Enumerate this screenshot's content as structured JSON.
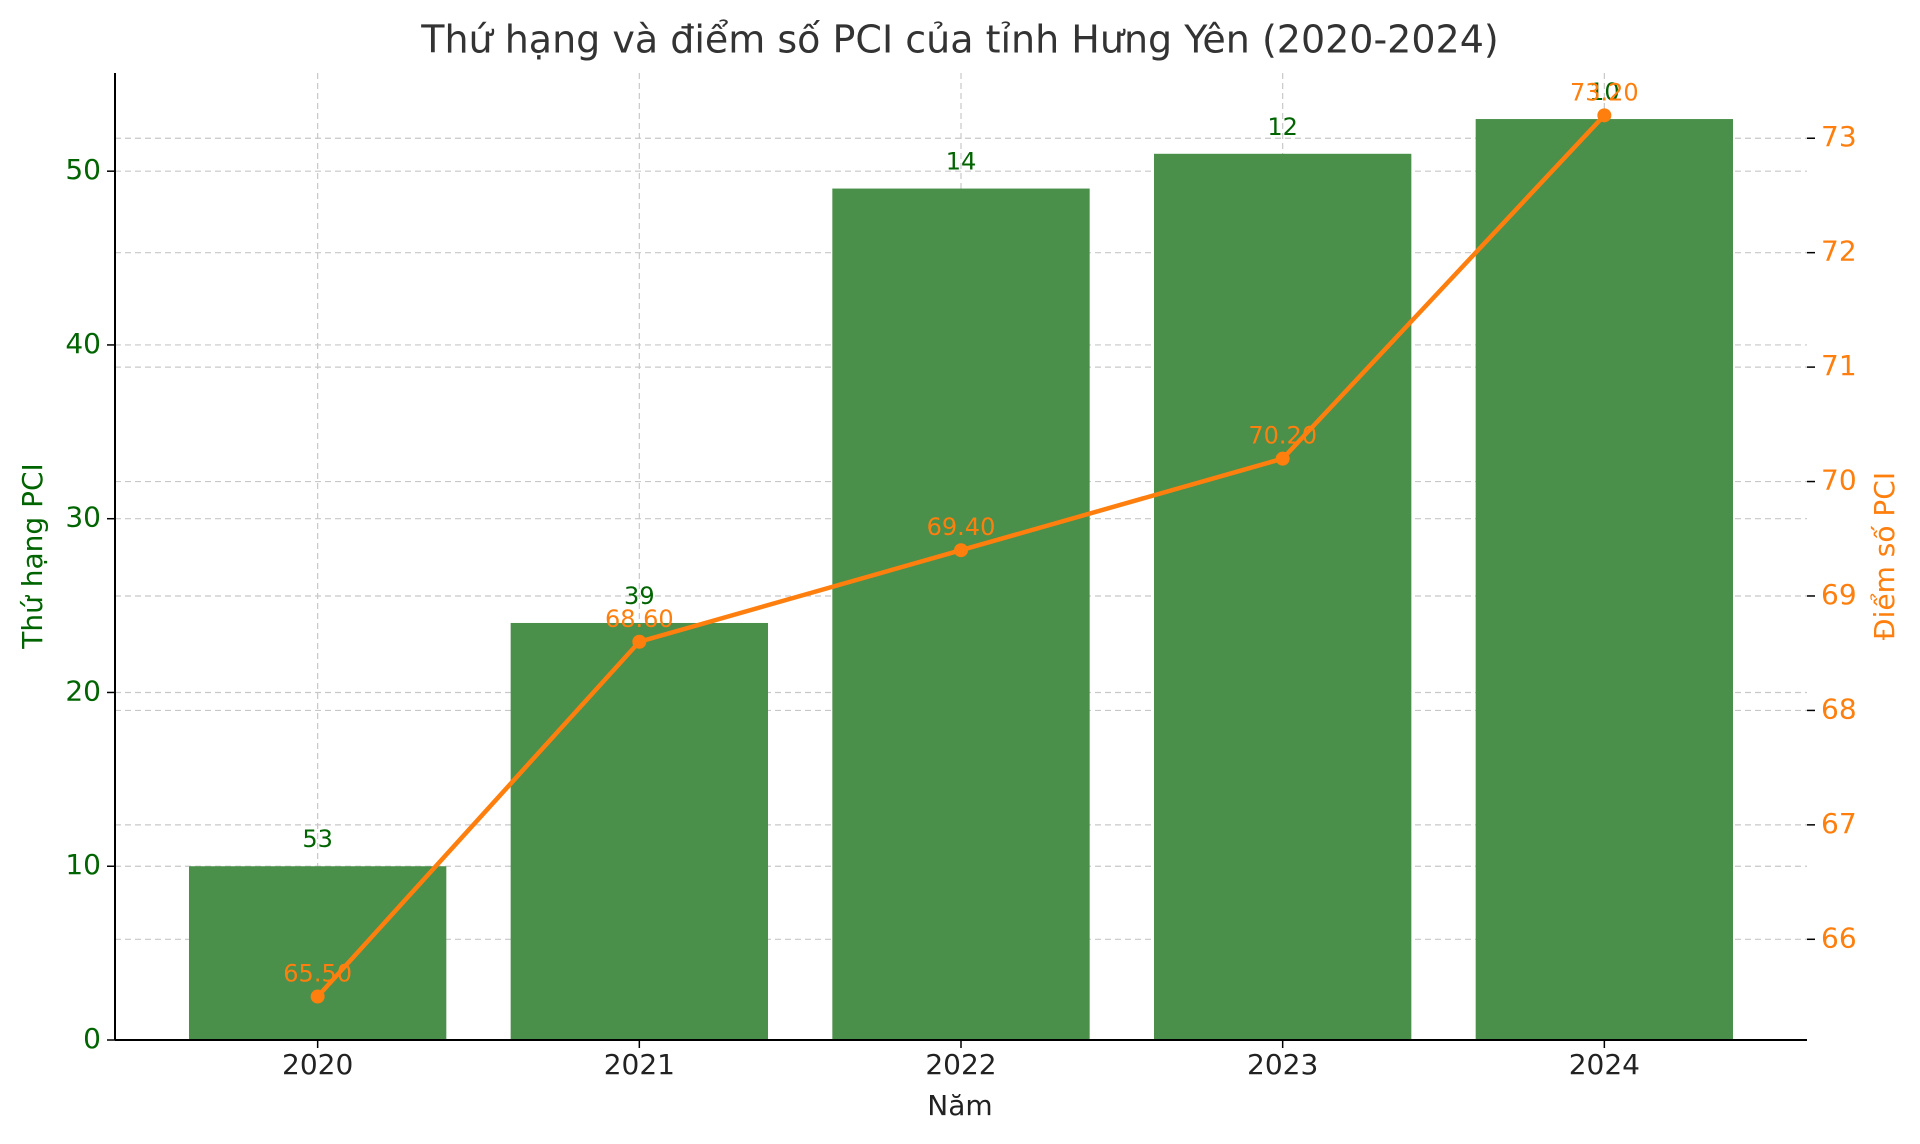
{
  "chart_data": {
    "type": "bar-line",
    "title": "Thứ hạng và điểm số PCI của tỉnh Hưng Yên (2020-2024)",
    "x_label": "Năm",
    "y_label": "Thứ hạng PCI",
    "y2_label": "Điểm số PCI",
    "categories": [
      "2020",
      "2021",
      "2022",
      "2023",
      "2024"
    ],
    "series": [
      {
        "type": "bar",
        "color": "#4a8f4a",
        "values": [
          10,
          24,
          49,
          51,
          53
        ],
        "labels": [
          "53",
          "39",
          "14",
          "12",
          "10"
        ]
      },
      {
        "type": "line",
        "axis": "y2",
        "color": "#ff7f0e",
        "values": [
          65.5,
          68.6,
          69.4,
          70.2,
          73.2
        ],
        "value_labels": [
          "65.50",
          "68.60",
          "69.40",
          "70.20",
          "73.20"
        ]
      }
    ],
    "ylim": [
      0,
      55.65
    ],
    "yticks": [
      0,
      10,
      20,
      30,
      40,
      50
    ],
    "y2lim": [
      65.12,
      73.57
    ],
    "y2ticks": [
      66,
      67,
      68,
      69,
      70,
      71,
      72,
      73
    ],
    "grid": true
  }
}
